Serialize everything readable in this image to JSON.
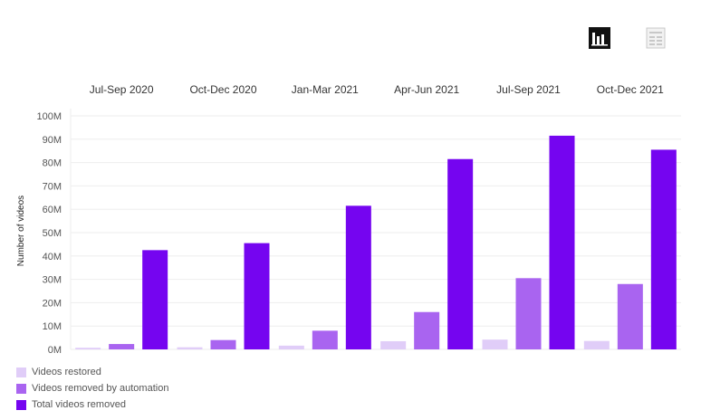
{
  "toolbar": {
    "bar_view_icon": "bar-chart-icon",
    "table_view_icon": "table-icon"
  },
  "chart_data": {
    "type": "bar",
    "categories": [
      "Jul-Sep 2020",
      "Oct-Dec 2020",
      "Jan-Mar 2021",
      "Apr-Jun 2021",
      "Jul-Sep 2021",
      "Oct-Dec 2021"
    ],
    "series": [
      {
        "name": "Videos restored",
        "color": "#e0cdf8",
        "values": [
          0.7,
          0.9,
          1.6,
          3.5,
          4.2,
          3.6
        ]
      },
      {
        "name": "Videos removed by automation",
        "color": "#a964f0",
        "values": [
          2.3,
          4.0,
          8.0,
          16.0,
          30.5,
          28.0
        ]
      },
      {
        "name": "Total videos removed",
        "color": "#7505f0",
        "values": [
          42.5,
          45.5,
          61.5,
          81.5,
          91.5,
          85.5
        ]
      }
    ],
    "ylabel": "Number of videos",
    "ylim": [
      0,
      100
    ],
    "yticks": [
      0,
      10,
      20,
      30,
      40,
      50,
      60,
      70,
      80,
      90,
      100
    ],
    "ytick_labels": [
      "0M",
      "10M",
      "20M",
      "30M",
      "40M",
      "50M",
      "60M",
      "70M",
      "80M",
      "90M",
      "100M"
    ],
    "legend_position": "bottom-left",
    "grid": true
  }
}
